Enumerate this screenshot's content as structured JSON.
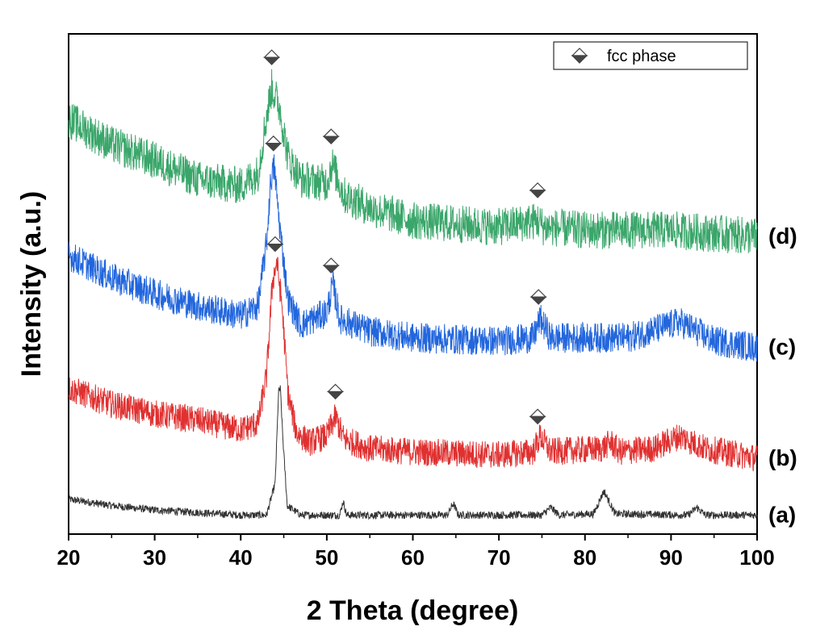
{
  "chart_data": {
    "type": "line",
    "title": "",
    "xlabel": "2 Theta (degree)",
    "ylabel": "Intensity (a.u.)",
    "xlim": [
      20,
      100
    ],
    "xticks": [
      20,
      30,
      40,
      50,
      60,
      70,
      80,
      90,
      100
    ],
    "x_tick_labels": [
      "20",
      "30",
      "40",
      "50",
      "60",
      "70",
      "80",
      "90",
      "100"
    ],
    "y_ticks_shown": false,
    "grid": false,
    "legend": {
      "position": "top-right",
      "entries": [
        {
          "label": "fcc phase",
          "marker": "diamond",
          "color": "#555555"
        }
      ]
    },
    "series": [
      {
        "name": "(a)",
        "color": "#333333",
        "noise": 0.06,
        "baseline": 0.3,
        "points": [
          [
            20,
            0.55
          ],
          [
            25,
            0.45
          ],
          [
            30,
            0.38
          ],
          [
            35,
            0.34
          ],
          [
            40,
            0.3
          ],
          [
            43,
            0.3
          ],
          [
            44,
            0.8
          ],
          [
            44.4,
            2.25
          ],
          [
            44.6,
            2.3
          ],
          [
            44.9,
            1.5
          ],
          [
            45.4,
            0.45
          ],
          [
            47,
            0.3
          ],
          [
            51.5,
            0.3
          ],
          [
            51.9,
            0.52
          ],
          [
            52.3,
            0.3
          ],
          [
            64,
            0.3
          ],
          [
            64.7,
            0.48
          ],
          [
            65.3,
            0.3
          ],
          [
            75,
            0.3
          ],
          [
            76,
            0.42
          ],
          [
            77,
            0.3
          ],
          [
            81,
            0.32
          ],
          [
            82.2,
            0.68
          ],
          [
            83.5,
            0.32
          ],
          [
            92,
            0.3
          ],
          [
            93,
            0.42
          ],
          [
            94,
            0.3
          ],
          [
            100,
            0.3
          ]
        ],
        "fcc_markers": []
      },
      {
        "name": "(b)",
        "color": "#e03030",
        "noise": 0.22,
        "baseline": 1.2,
        "points": [
          [
            20,
            2.3
          ],
          [
            25,
            2.05
          ],
          [
            30,
            1.9
          ],
          [
            35,
            1.8
          ],
          [
            40,
            1.65
          ],
          [
            42,
            1.75
          ],
          [
            43,
            2.5
          ],
          [
            43.7,
            4.0
          ],
          [
            44.2,
            4.3
          ],
          [
            44.8,
            3.6
          ],
          [
            45.5,
            2.2
          ],
          [
            46.5,
            1.6
          ],
          [
            48,
            1.45
          ],
          [
            50,
            1.55
          ],
          [
            51,
            1.85
          ],
          [
            52,
            1.5
          ],
          [
            55,
            1.35
          ],
          [
            60,
            1.3
          ],
          [
            70,
            1.25
          ],
          [
            74,
            1.3
          ],
          [
            74.8,
            1.55
          ],
          [
            76,
            1.3
          ],
          [
            82,
            1.35
          ],
          [
            83,
            1.45
          ],
          [
            84,
            1.3
          ],
          [
            88,
            1.35
          ],
          [
            91,
            1.55
          ],
          [
            94,
            1.35
          ],
          [
            100,
            1.2
          ]
        ],
        "fcc_markers": [
          44.0,
          51.0,
          74.5
        ]
      },
      {
        "name": "(c)",
        "color": "#2266dd",
        "noise": 0.24,
        "baseline": 2.8,
        "points": [
          [
            20,
            4.4
          ],
          [
            25,
            4.05
          ],
          [
            30,
            3.8
          ],
          [
            35,
            3.6
          ],
          [
            40,
            3.45
          ],
          [
            42,
            3.6
          ],
          [
            43,
            4.6
          ],
          [
            43.5,
            5.6
          ],
          [
            43.9,
            5.8
          ],
          [
            44.5,
            4.9
          ],
          [
            45.5,
            3.7
          ],
          [
            47,
            3.3
          ],
          [
            50,
            3.5
          ],
          [
            50.7,
            3.95
          ],
          [
            51.5,
            3.4
          ],
          [
            55,
            3.2
          ],
          [
            60,
            3.1
          ],
          [
            70,
            3.05
          ],
          [
            74,
            3.1
          ],
          [
            74.8,
            3.4
          ],
          [
            76,
            3.1
          ],
          [
            85,
            3.1
          ],
          [
            91,
            3.35
          ],
          [
            95,
            3.05
          ],
          [
            100,
            2.95
          ]
        ],
        "fcc_markers": [
          43.8,
          50.5,
          74.6
        ]
      },
      {
        "name": "(d)",
        "color": "#3aa66a",
        "noise": 0.3,
        "baseline": 4.5,
        "points": [
          [
            20,
            6.55
          ],
          [
            25,
            6.15
          ],
          [
            30,
            5.9
          ],
          [
            35,
            5.6
          ],
          [
            40,
            5.5
          ],
          [
            42,
            5.7
          ],
          [
            43,
            6.6
          ],
          [
            43.6,
            7.05
          ],
          [
            44.5,
            6.75
          ],
          [
            45.5,
            5.95
          ],
          [
            47,
            5.6
          ],
          [
            50,
            5.55
          ],
          [
            50.6,
            5.85
          ],
          [
            52,
            5.35
          ],
          [
            55,
            5.15
          ],
          [
            60,
            4.95
          ],
          [
            70,
            4.85
          ],
          [
            74.5,
            4.95
          ],
          [
            75.2,
            4.85
          ],
          [
            80,
            4.8
          ],
          [
            90,
            4.8
          ],
          [
            100,
            4.7
          ]
        ],
        "fcc_markers": [
          43.6,
          50.5,
          74.5
        ]
      }
    ]
  }
}
